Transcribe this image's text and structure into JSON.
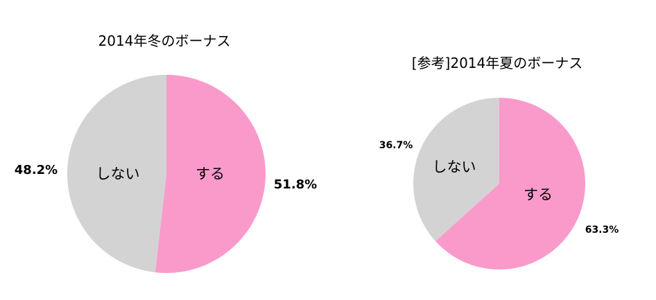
{
  "chart_data": [
    {
      "type": "pie",
      "title": "2014年冬のボーナス",
      "slices": [
        {
          "label": "する",
          "value": 51.8,
          "value_label": "51.8%",
          "color": "#fa9acb"
        },
        {
          "label": "しない",
          "value": 48.2,
          "value_label": "48.2%",
          "color": "#d3d3d3"
        }
      ],
      "start": "12 o'clock",
      "direction": "clockwise"
    },
    {
      "type": "pie",
      "title": "[参考]2014年夏のボーナス",
      "slices": [
        {
          "label": "する",
          "value": 63.3,
          "value_label": "63.3%",
          "color": "#fa9acb"
        },
        {
          "label": "しない",
          "value": 36.7,
          "value_label": "36.7%",
          "color": "#d3d3d3"
        }
      ],
      "start": "12 o'clock",
      "direction": "clockwise"
    }
  ]
}
